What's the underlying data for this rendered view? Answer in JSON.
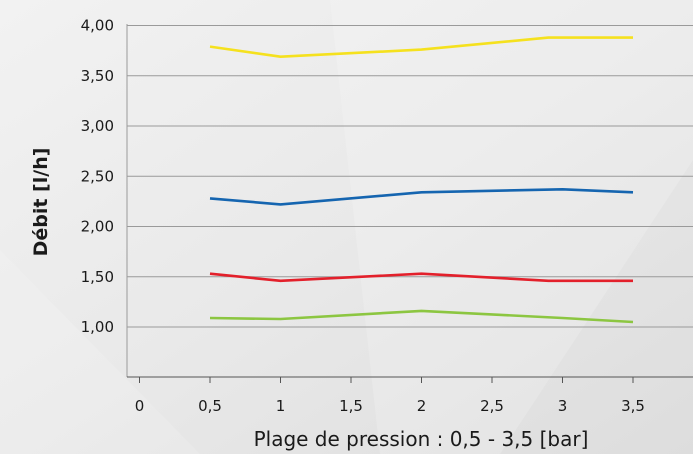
{
  "chart_data": {
    "type": "line",
    "title": "",
    "xlabel": "Plage de pression : 0,5 - 3,5 [bar]",
    "ylabel": "Débit [l/h]",
    "xlim": [
      0,
      3.8
    ],
    "ylim": [
      0.5,
      4.0
    ],
    "x_ticks": [
      {
        "value": 0,
        "label": "0"
      },
      {
        "value": 0.5,
        "label": "0,5"
      },
      {
        "value": 1,
        "label": "1"
      },
      {
        "value": 1.5,
        "label": "1,5"
      },
      {
        "value": 2,
        "label": "2"
      },
      {
        "value": 2.5,
        "label": "2,5"
      },
      {
        "value": 3,
        "label": "3"
      },
      {
        "value": 3.5,
        "label": "3,5"
      }
    ],
    "y_ticks": [
      {
        "value": 1.0,
        "label": "1,00"
      },
      {
        "value": 1.5,
        "label": "1,50"
      },
      {
        "value": 2.0,
        "label": "2,00"
      },
      {
        "value": 2.5,
        "label": "2,50"
      },
      {
        "value": 3.0,
        "label": "3,00"
      },
      {
        "value": 3.5,
        "label": "3,50"
      },
      {
        "value": 4.0,
        "label": "4,00"
      }
    ],
    "grid": true,
    "legend": "none",
    "series": [
      {
        "color": "#f5e11e",
        "x": [
          0.5,
          1,
          2,
          2.9,
          3.5
        ],
        "y": [
          3.79,
          3.69,
          3.76,
          3.88,
          3.88
        ]
      },
      {
        "color": "#1565b0",
        "x": [
          0.5,
          1,
          2,
          3,
          3.5
        ],
        "y": [
          2.28,
          2.22,
          2.34,
          2.37,
          2.34
        ]
      },
      {
        "color": "#e3202b",
        "x": [
          0.5,
          1,
          2,
          2.9,
          3.5
        ],
        "y": [
          1.53,
          1.46,
          1.53,
          1.46,
          1.46
        ]
      },
      {
        "color": "#8cc641",
        "x": [
          0.5,
          1,
          2,
          3,
          3.5
        ],
        "y": [
          1.09,
          1.08,
          1.16,
          1.09,
          1.05
        ]
      }
    ]
  }
}
